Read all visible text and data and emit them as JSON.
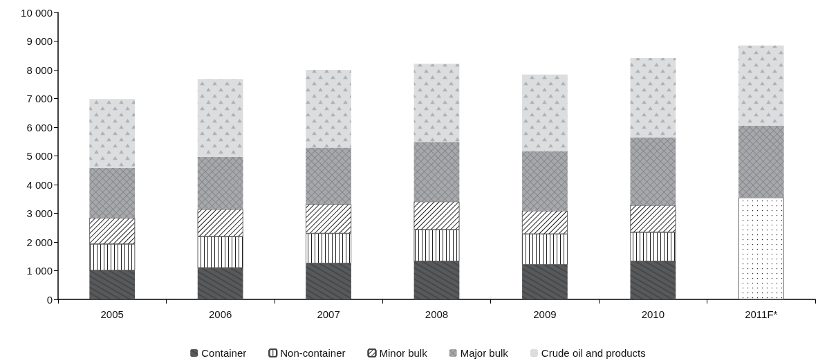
{
  "chart_data": {
    "type": "bar",
    "stacked": true,
    "categories": [
      "2005",
      "2006",
      "2007",
      "2008",
      "2009",
      "2010",
      "2011F*"
    ],
    "series": [
      {
        "name": "Container",
        "color": "#58595b",
        "values": [
          1010,
          1100,
          1260,
          1330,
          1210,
          1330,
          null
        ]
      },
      {
        "name": "Non-container",
        "color": "#ffffff",
        "values": [
          920,
          1090,
          1040,
          1100,
          1070,
          1010,
          null
        ]
      },
      {
        "name": "Minor bulk",
        "color": "#ffffff",
        "values": [
          910,
          950,
          1020,
          980,
          810,
          940,
          null
        ]
      },
      {
        "color": "#ffffff",
        "values": [
          null,
          null,
          null,
          null,
          null,
          null,
          3550
        ]
      },
      {
        "name": "Major bulk",
        "color": "#a7a8ab",
        "values": [
          1740,
          1830,
          1970,
          2080,
          2080,
          2360,
          2500
        ]
      },
      {
        "name": "Crude oil and products",
        "color": "#dcdddf",
        "values": [
          2400,
          2710,
          2710,
          2720,
          2670,
          2770,
          2800
        ]
      }
    ],
    "ylim": [
      0,
      10000
    ],
    "yticks": [
      0,
      {
        "value": 1000,
        "label": "1 000"
      },
      {
        "value": 2000,
        "label": "2 000"
      },
      {
        "value": 3000,
        "label": "3 000"
      },
      {
        "value": 4000,
        "label": "4 000"
      },
      {
        "value": 5000,
        "label": "5 000"
      },
      {
        "value": 6000,
        "label": "6 000"
      },
      {
        "value": 7000,
        "label": "7 000"
      },
      {
        "value": 8000,
        "label": "8 000"
      },
      {
        "value": 9000,
        "label": "9 000"
      },
      {
        "value": 10000,
        "label": "10 000"
      }
    ],
    "grid": false,
    "legend": "bottom"
  }
}
